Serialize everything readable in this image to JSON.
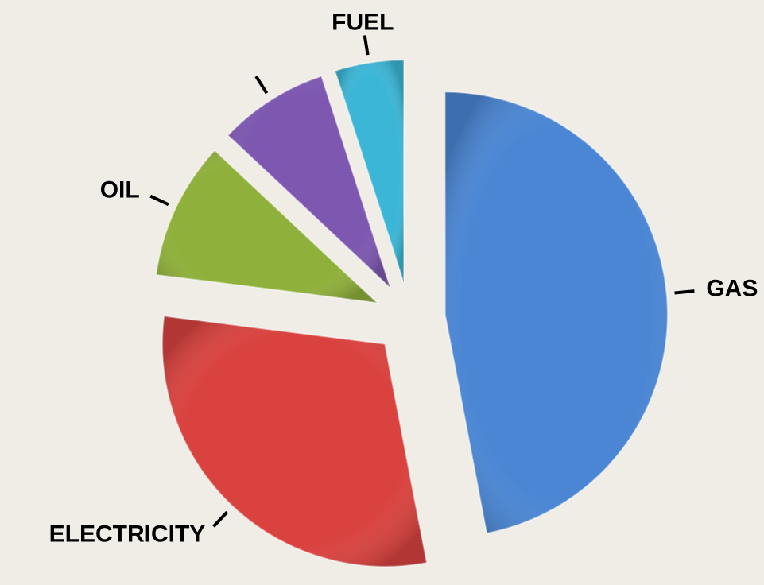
{
  "chart_data": {
    "type": "pie",
    "categories": [
      "GAS",
      "ELECTRICITY",
      "OIL",
      null,
      "FUEL"
    ],
    "values": [
      47,
      30,
      10,
      8,
      5
    ],
    "colors": [
      "#4a86d4",
      "#d9423f",
      "#8fb03a",
      "#7d57b0",
      "#3bb6d6"
    ]
  }
}
